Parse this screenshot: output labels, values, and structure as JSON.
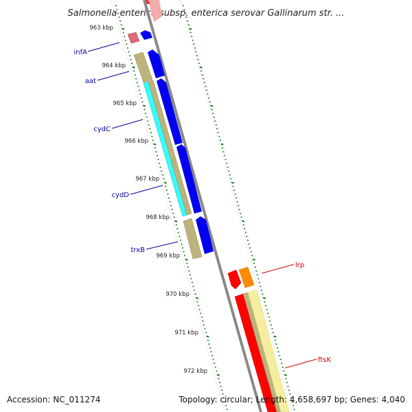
{
  "title": "Salmonella enterica subsp. enterica serovar Gallinarum str. ...",
  "footer": {
    "accession": "Accession: NC_011274",
    "summary": "Topology: circular; Length: 4,658,697 bp; Genes: 4,040"
  },
  "ticks": [
    "963 kbp",
    "964 kbp",
    "965 kbp",
    "966 kbp",
    "967 kbp",
    "968 kbp",
    "969 kbp",
    "970 kbp",
    "971 kbp",
    "972 kbp"
  ],
  "genes": [
    {
      "name": "infA",
      "color": "#000099"
    },
    {
      "name": "aat",
      "color": "#000099"
    },
    {
      "name": "cydC",
      "color": "#000099"
    },
    {
      "name": "cydD",
      "color": "#000099"
    },
    {
      "name": "trxB",
      "color": "#000099"
    },
    {
      "name": "lrp",
      "color": "#cc0000"
    },
    {
      "name": "ftsK",
      "color": "#cc0000"
    }
  ],
  "colors": {
    "backbone": "#888888",
    "forward_cds": "#0000ee",
    "cog_tan": "#bdb37c",
    "cog_cyan": "#33ffff",
    "cog_pink": "#dd6a7a",
    "reverse_cds": "#ff0000",
    "cog_orange": "#ff8c00",
    "cog_yellow": "#f5eea0",
    "tick_green": "#1a7a1a"
  }
}
